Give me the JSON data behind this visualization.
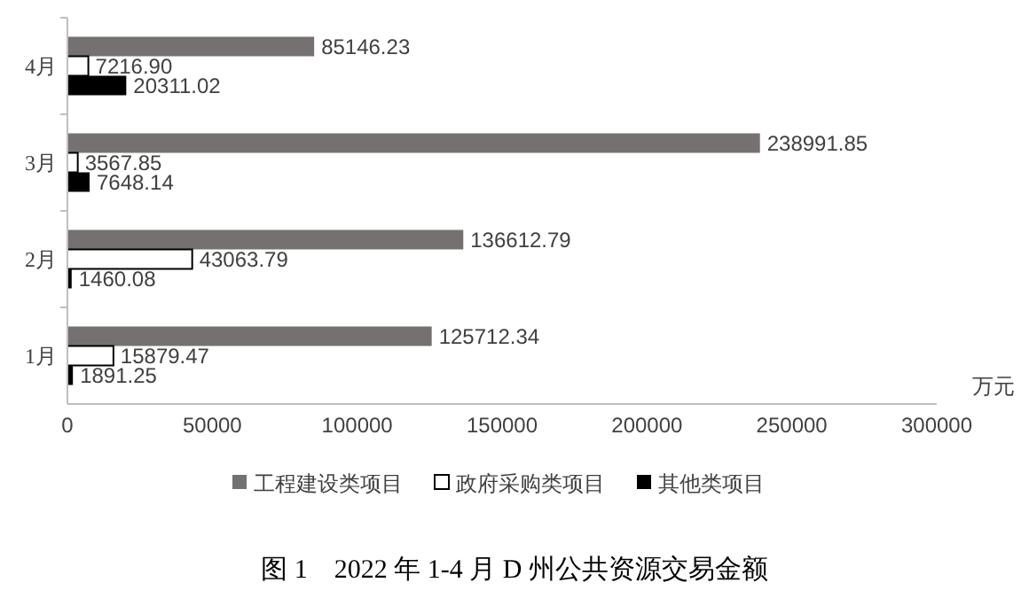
{
  "chart_data": {
    "type": "bar",
    "orientation": "horizontal",
    "title": "图 1　2022 年 1-4 月 D 州公共资源交易金额",
    "xlabel": "万元",
    "categories": [
      "4月",
      "3月",
      "2月",
      "1月"
    ],
    "series": [
      {
        "name": "工程建设类项目",
        "color": "#767171",
        "values": [
          85146.23,
          238991.85,
          136612.79,
          125712.34
        ],
        "value_labels": [
          "85146.23",
          "238991.85",
          "136612.79",
          "125712.34"
        ]
      },
      {
        "name": "政府采购类项目",
        "color": "#ffffff",
        "values": [
          7216.9,
          3567.85,
          43063.79,
          15879.47
        ],
        "value_labels": [
          "7216.90",
          "3567.85",
          "43063.79",
          "15879.47"
        ]
      },
      {
        "name": "其他类项目",
        "color": "#000000",
        "values": [
          20311.02,
          7648.14,
          1460.08,
          1891.25
        ],
        "value_labels": [
          "20311.02",
          "7648.14",
          "1460.08",
          "1891.25"
        ]
      }
    ],
    "xlim": [
      0,
      300000
    ],
    "xticks": [
      0,
      50000,
      100000,
      150000,
      200000,
      250000,
      300000
    ],
    "legend": "bottom"
  }
}
